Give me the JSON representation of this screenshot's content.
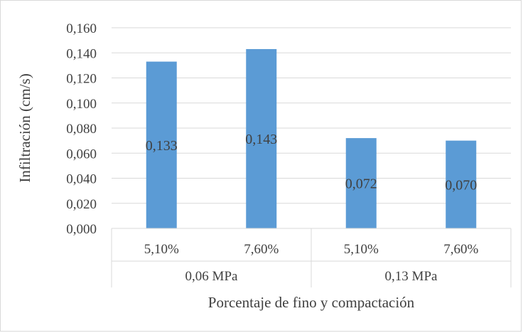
{
  "chart_data": {
    "type": "bar",
    "title": "",
    "xlabel": "Porcentaje de fino y compactación",
    "ylabel": "Infiltración (cm/s)",
    "ylim": [
      0,
      0.16
    ],
    "y_ticks": [
      "0,000",
      "0,020",
      "0,040",
      "0,060",
      "0,080",
      "0,100",
      "0,120",
      "0,140",
      "0,160"
    ],
    "y_tick_values": [
      0,
      0.02,
      0.04,
      0.06,
      0.08,
      0.1,
      0.12,
      0.14,
      0.16
    ],
    "groups": [
      {
        "label": "0,06 MPa",
        "categories": [
          "5,10%",
          "7,60%"
        ]
      },
      {
        "label": "0,13 MPa",
        "categories": [
          "5,10%",
          "7,60%"
        ]
      }
    ],
    "categories": [
      "5,10%",
      "7,60%",
      "5,10%",
      "7,60%"
    ],
    "values": [
      0.133,
      0.143,
      0.072,
      0.07
    ],
    "data_labels": [
      "0,133",
      "0,143",
      "0,072",
      "0,070"
    ],
    "bar_color": "#5b9bd5",
    "grid": true,
    "legend": "none"
  }
}
